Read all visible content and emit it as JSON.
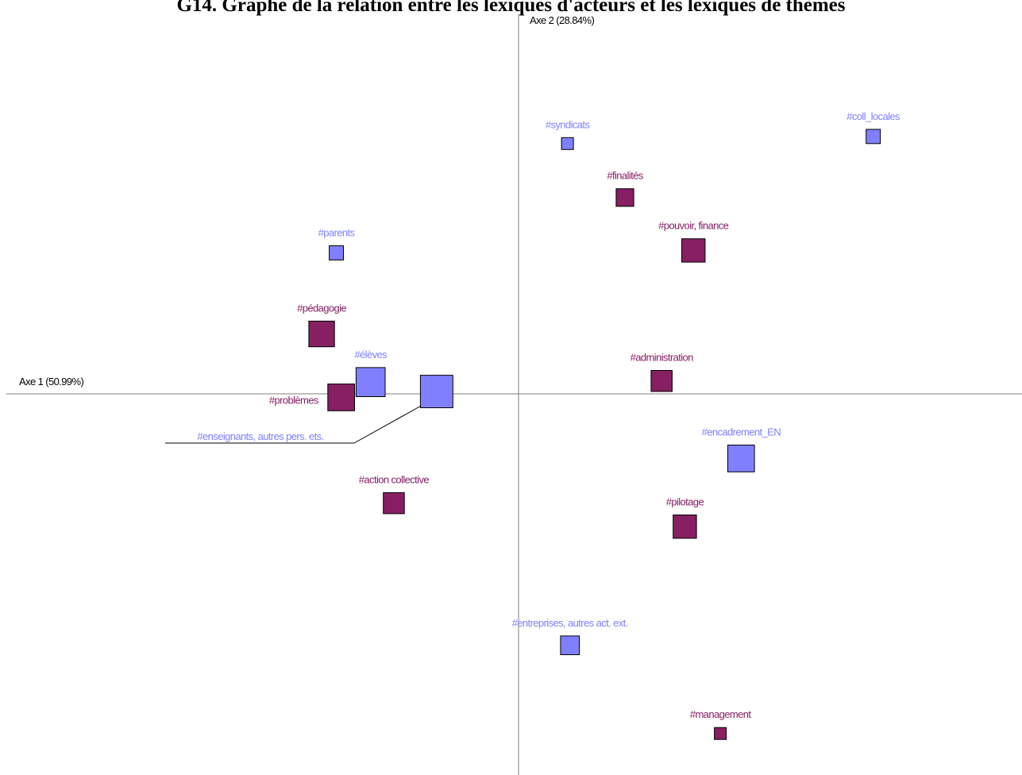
{
  "chart_data": {
    "type": "scatter",
    "title": "G14. Graphe de la relation entre les lexiques d'acteurs et les lexiques de thèmes",
    "xlabel": "Axe 1 (50.99%)",
    "ylabel": "Axe 2 (28.84%)",
    "grid": false,
    "legend": "none",
    "series": [
      {
        "color": "#8080ff",
        "points": [
          {
            "label": "#syndicats",
            "x": 0.4,
            "y": 2.13,
            "weight": 1
          },
          {
            "label": "#coll_locales",
            "x": 2.9,
            "y": 2.19,
            "weight": 1.2
          },
          {
            "label": "#parents",
            "x": -1.49,
            "y": 1.2,
            "weight": 1.2
          },
          {
            "label": "#élèves",
            "x": -1.21,
            "y": 0.1,
            "weight": 2.5
          },
          {
            "label": "#enseignants, autres pers. ets.",
            "x": -0.67,
            "y": 0.02,
            "weight": 2.8
          },
          {
            "label": "#encadrement_EN",
            "x": 1.82,
            "y": -0.55,
            "weight": 2.3
          },
          {
            "label": "#entreprises, autres act. ext.",
            "x": 0.42,
            "y": -2.14,
            "weight": 1.6
          }
        ]
      },
      {
        "color": "#862062",
        "points": [
          {
            "label": "#finalités",
            "x": 0.87,
            "y": 1.67,
            "weight": 1.5
          },
          {
            "label": "#pouvoir, finance",
            "x": 1.43,
            "y": 1.22,
            "weight": 2.0
          },
          {
            "label": "#pédagogie",
            "x": -1.61,
            "y": 0.51,
            "weight": 2.2
          },
          {
            "label": "#administration",
            "x": 1.17,
            "y": 0.11,
            "weight": 1.8
          },
          {
            "label": "#problèmes",
            "x": -1.45,
            "y": -0.03,
            "weight": 2.3
          },
          {
            "label": "#action collective",
            "x": -1.02,
            "y": -0.93,
            "weight": 1.8
          },
          {
            "label": "#pilotage",
            "x": 1.36,
            "y": -1.13,
            "weight": 2.0
          },
          {
            "label": "#management",
            "x": 1.65,
            "y": -2.89,
            "weight": 1.0
          }
        ]
      }
    ]
  }
}
